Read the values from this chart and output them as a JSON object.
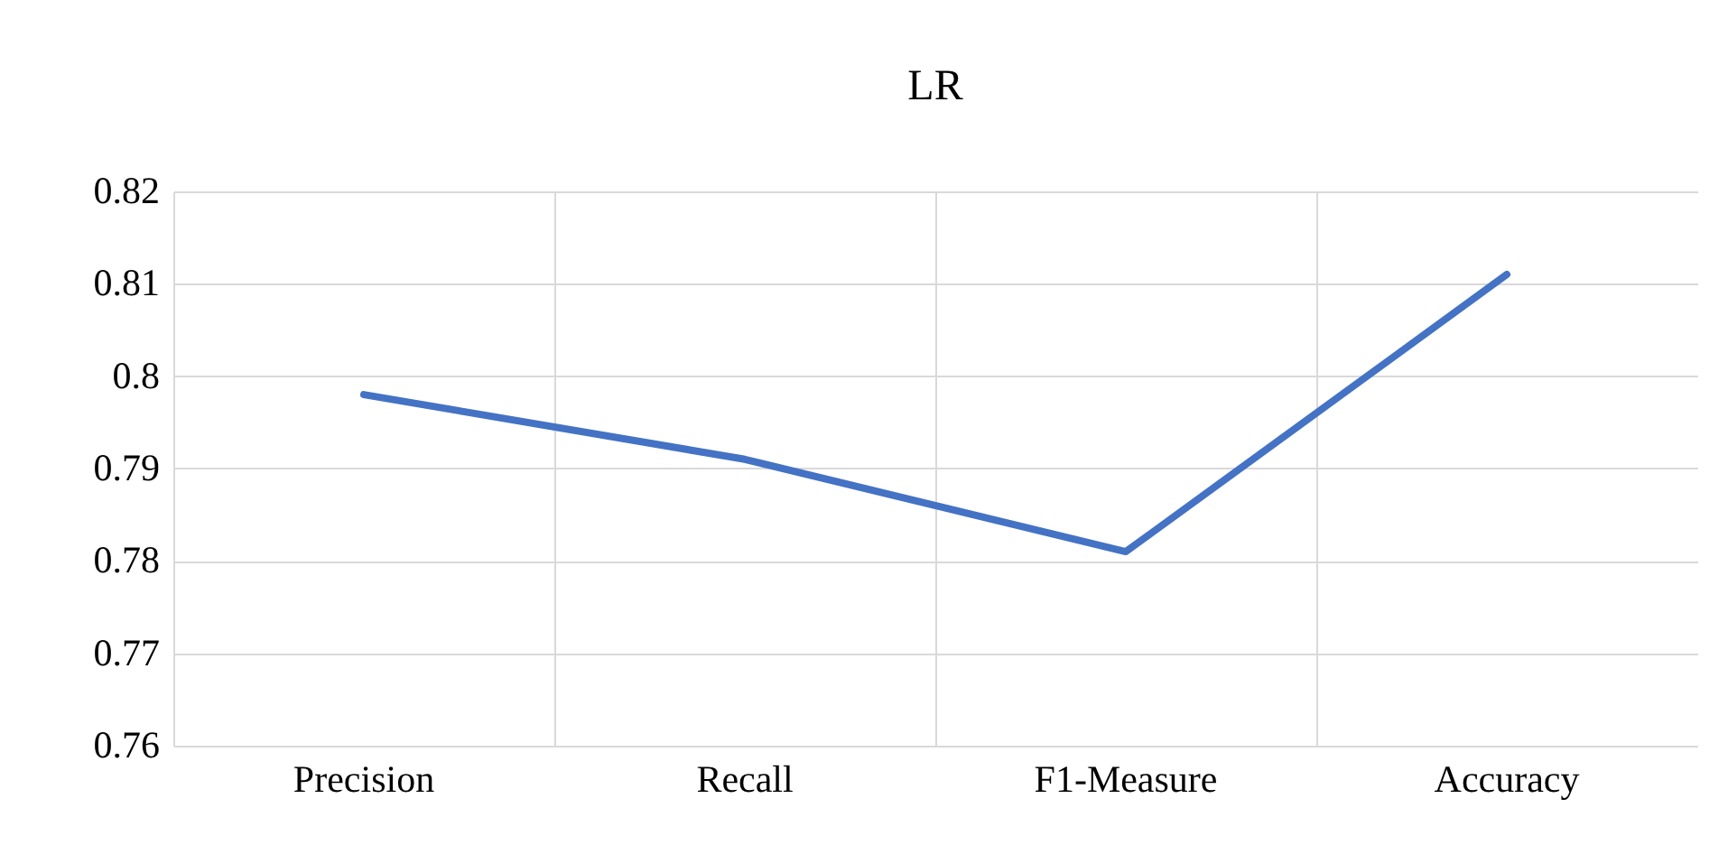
{
  "chart_data": {
    "type": "line",
    "title": "LR",
    "categories": [
      "Precision",
      "Recall",
      "F1-Measure",
      "Accuracy"
    ],
    "series": [
      {
        "color": "#4472c4",
        "values": [
          0.798,
          0.791,
          0.781,
          0.811
        ]
      }
    ],
    "ylim": [
      0.76,
      0.82
    ],
    "yticks": [
      0.76,
      0.77,
      0.78,
      0.79,
      0.8,
      0.81,
      0.82
    ],
    "grid": true,
    "marker": "none",
    "line_style": "solid"
  }
}
